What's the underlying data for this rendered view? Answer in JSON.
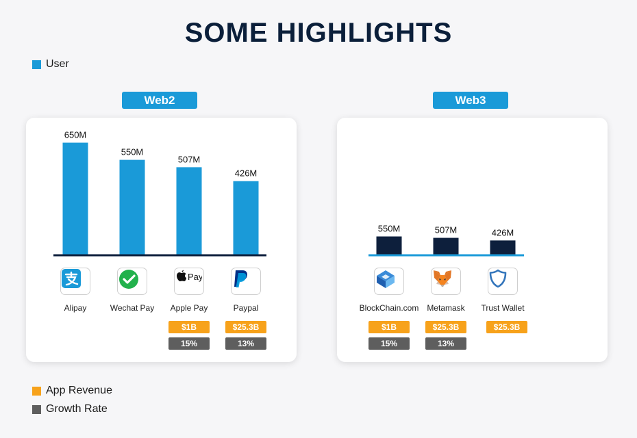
{
  "title": "SOME HIGHLIGHTS",
  "legend": {
    "user": "User",
    "revenue": "App Revenue",
    "growth": "Growth Rate"
  },
  "colors": {
    "user_web2": "#1a9ad8",
    "user_web3": "#0d1f3c",
    "revenue": "#f7a21b",
    "growth": "#5e5e5e"
  },
  "chart_data": [
    {
      "type": "bar",
      "tag": "Web2",
      "categories": [
        "Alipay",
        "Wechat Pay",
        "Apple Pay",
        "Paypal"
      ],
      "values": [
        650,
        550,
        507,
        426
      ],
      "labels": [
        "650M",
        "550M",
        "507M",
        "426M"
      ],
      "icons": [
        "alipay-logo",
        "wechat-pay-logo",
        "apple-pay-logo",
        "paypal-logo"
      ],
      "revenue": [
        "",
        "",
        "$1B",
        "$25.3B"
      ],
      "growth": [
        "",
        "",
        "15%",
        "13%"
      ],
      "ylim": [
        0,
        650
      ]
    },
    {
      "type": "bar",
      "tag": "Web3",
      "categories": [
        "BlockChain.com",
        "Metamask",
        "Trust Wallet"
      ],
      "values": [
        550,
        507,
        426
      ],
      "labels": [
        "550M",
        "507M",
        "426M"
      ],
      "icons": [
        "blockchain-logo",
        "metamask-logo",
        "trust-wallet-logo"
      ],
      "revenue": [
        "$1B",
        "$25.3B",
        "$25.3B"
      ],
      "growth": [
        "15%",
        "13%",
        ""
      ]
    }
  ]
}
